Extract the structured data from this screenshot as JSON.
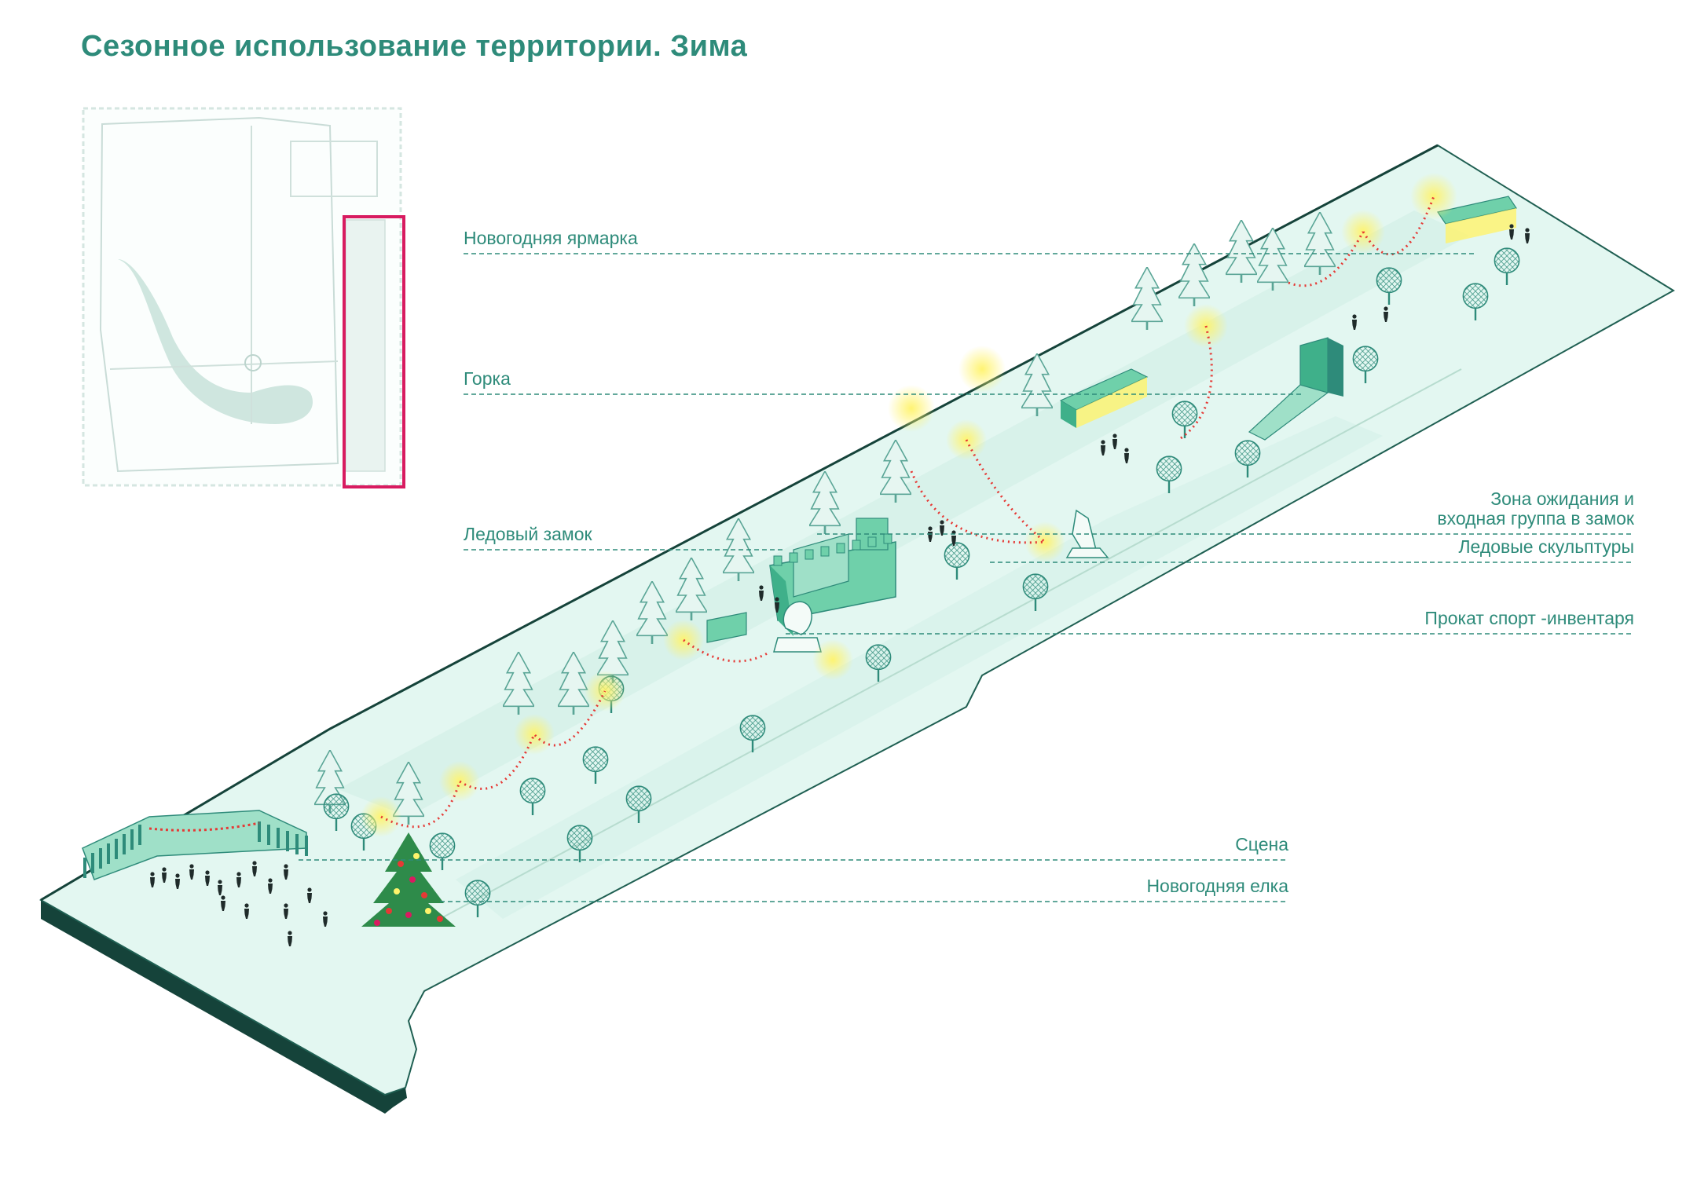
{
  "title": "Сезонное использование территории. Зима",
  "colors": {
    "accent": "#2e8b7a",
    "highlight_frame": "#d81b60",
    "ground": "#dff5ee",
    "base_dark": "#15433a",
    "garland": "#e53935",
    "lamp_glow": "#fff36b"
  },
  "labels": {
    "fair": "Новогодняя ярмарка",
    "slide": "Горка",
    "ice_castle": "Ледовый замок",
    "waiting_zone_line1": "Зона  ожидания  и",
    "waiting_zone_line2": "входная группа в замок",
    "ice_sculptures": "Ледовые скульптуры",
    "rental": "Прокат спорт -инвентаря",
    "stage": "Сцена",
    "tree": "Новогодняя елка"
  }
}
